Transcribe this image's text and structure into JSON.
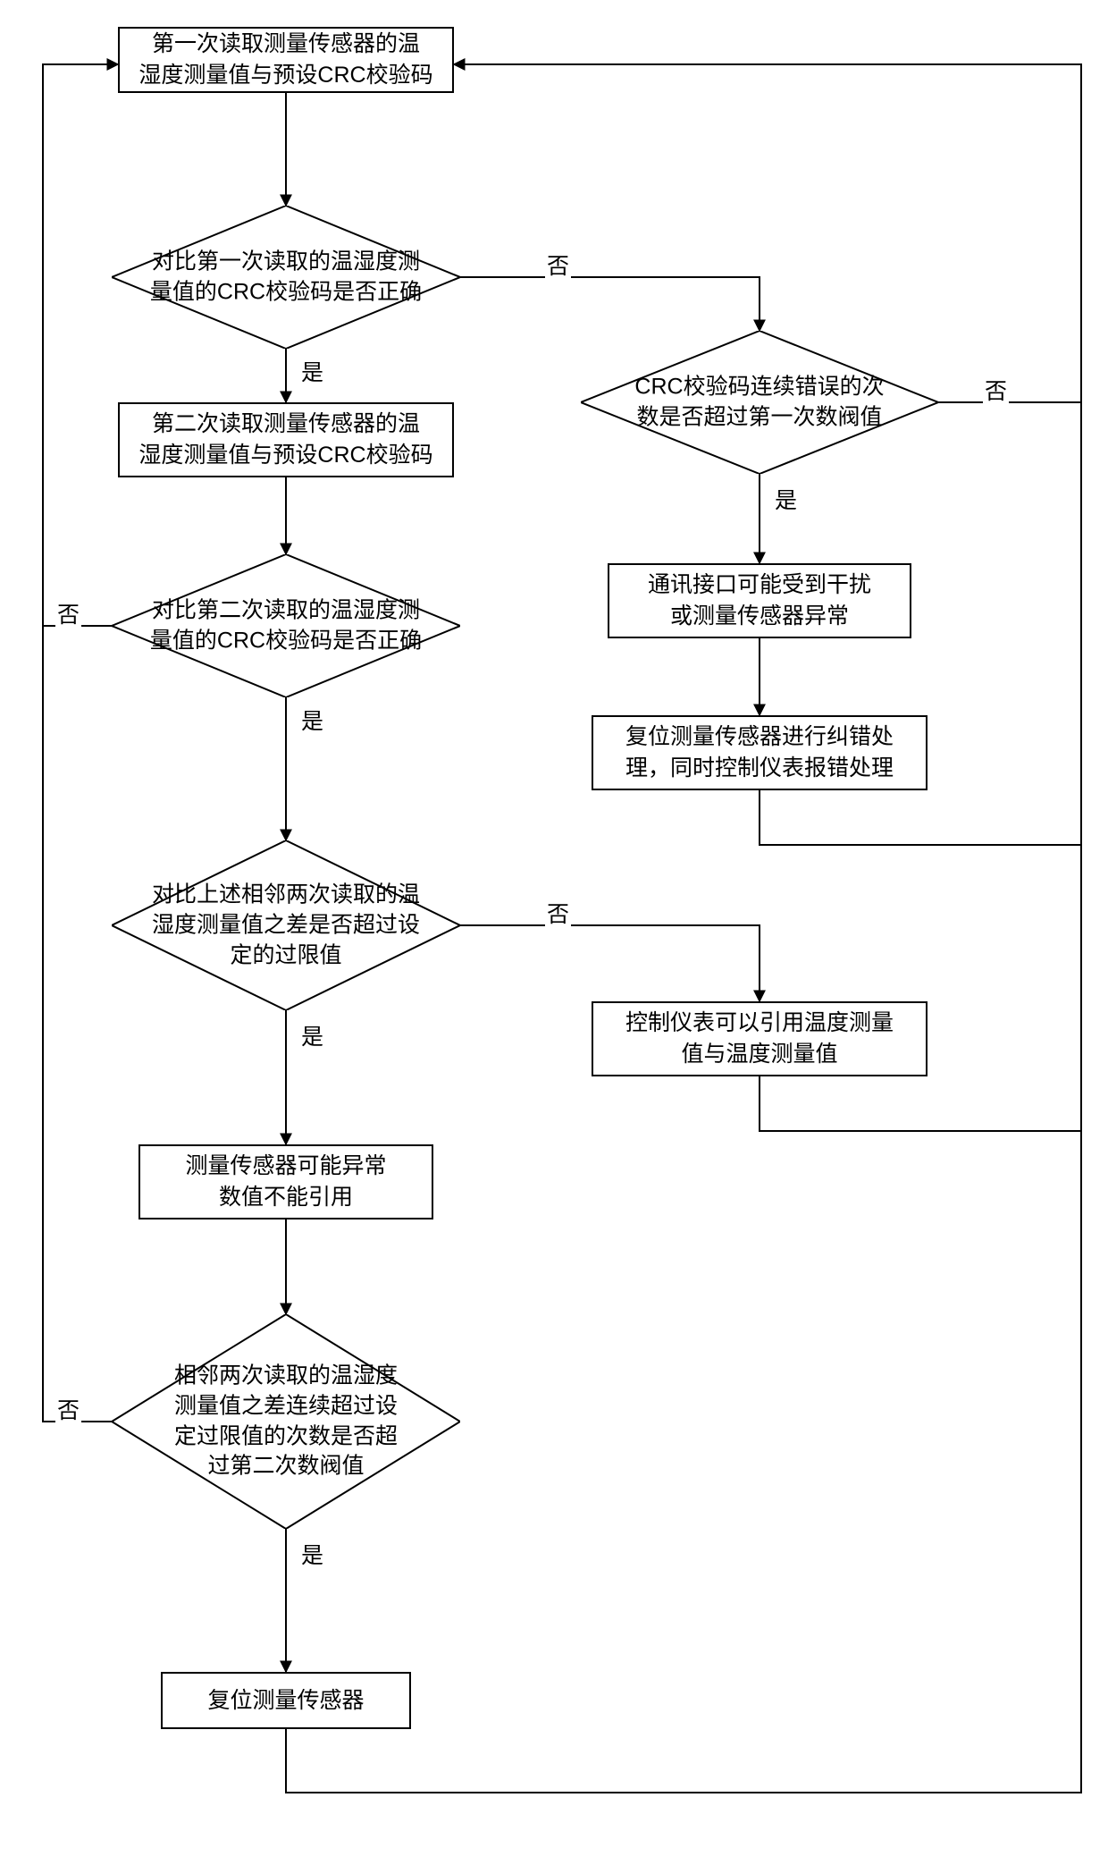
{
  "flowchart": {
    "type": "flowchart",
    "background_color": "#ffffff",
    "stroke_color": "#000000",
    "stroke_width": 2,
    "font_size": 25,
    "nodes": {
      "n1": {
        "type": "process",
        "text": "第一次读取测量传感器的温\n湿度测量值与预设CRC校验码"
      },
      "n2": {
        "type": "decision",
        "text": "对比第一次读取的温湿度测\n量值的CRC校验码是否正确"
      },
      "n3": {
        "type": "process",
        "text": "第二次读取测量传感器的温\n湿度测量值与预设CRC校验码"
      },
      "n4": {
        "type": "decision",
        "text": "对比第二次读取的温湿度测\n量值的CRC校验码是否正确"
      },
      "n5": {
        "type": "decision",
        "text": "对比上述相邻两次读取的温\n湿度测量值之差是否超过设\n定的过限值"
      },
      "n6": {
        "type": "process",
        "text": "测量传感器可能异常\n数值不能引用"
      },
      "n7": {
        "type": "decision",
        "text": "相邻两次读取的温湿度\n测量值之差连续超过设\n定过限值的次数是否超\n过第二次数阀值"
      },
      "n8": {
        "type": "process",
        "text": "复位测量传感器"
      },
      "n9": {
        "type": "decision",
        "text": "CRC校验码连续错误的次\n数是否超过第一次数阀值"
      },
      "n10": {
        "type": "process",
        "text": "通讯接口可能受到干扰\n或测量传感器异常"
      },
      "n11": {
        "type": "process",
        "text": "复位测量传感器进行纠错处\n理，同时控制仪表报错处理"
      },
      "n12": {
        "type": "process",
        "text": "控制仪表可以引用温度测量\n值与温度测量值"
      }
    },
    "edge_labels": {
      "yes": "是",
      "no": "否"
    }
  }
}
